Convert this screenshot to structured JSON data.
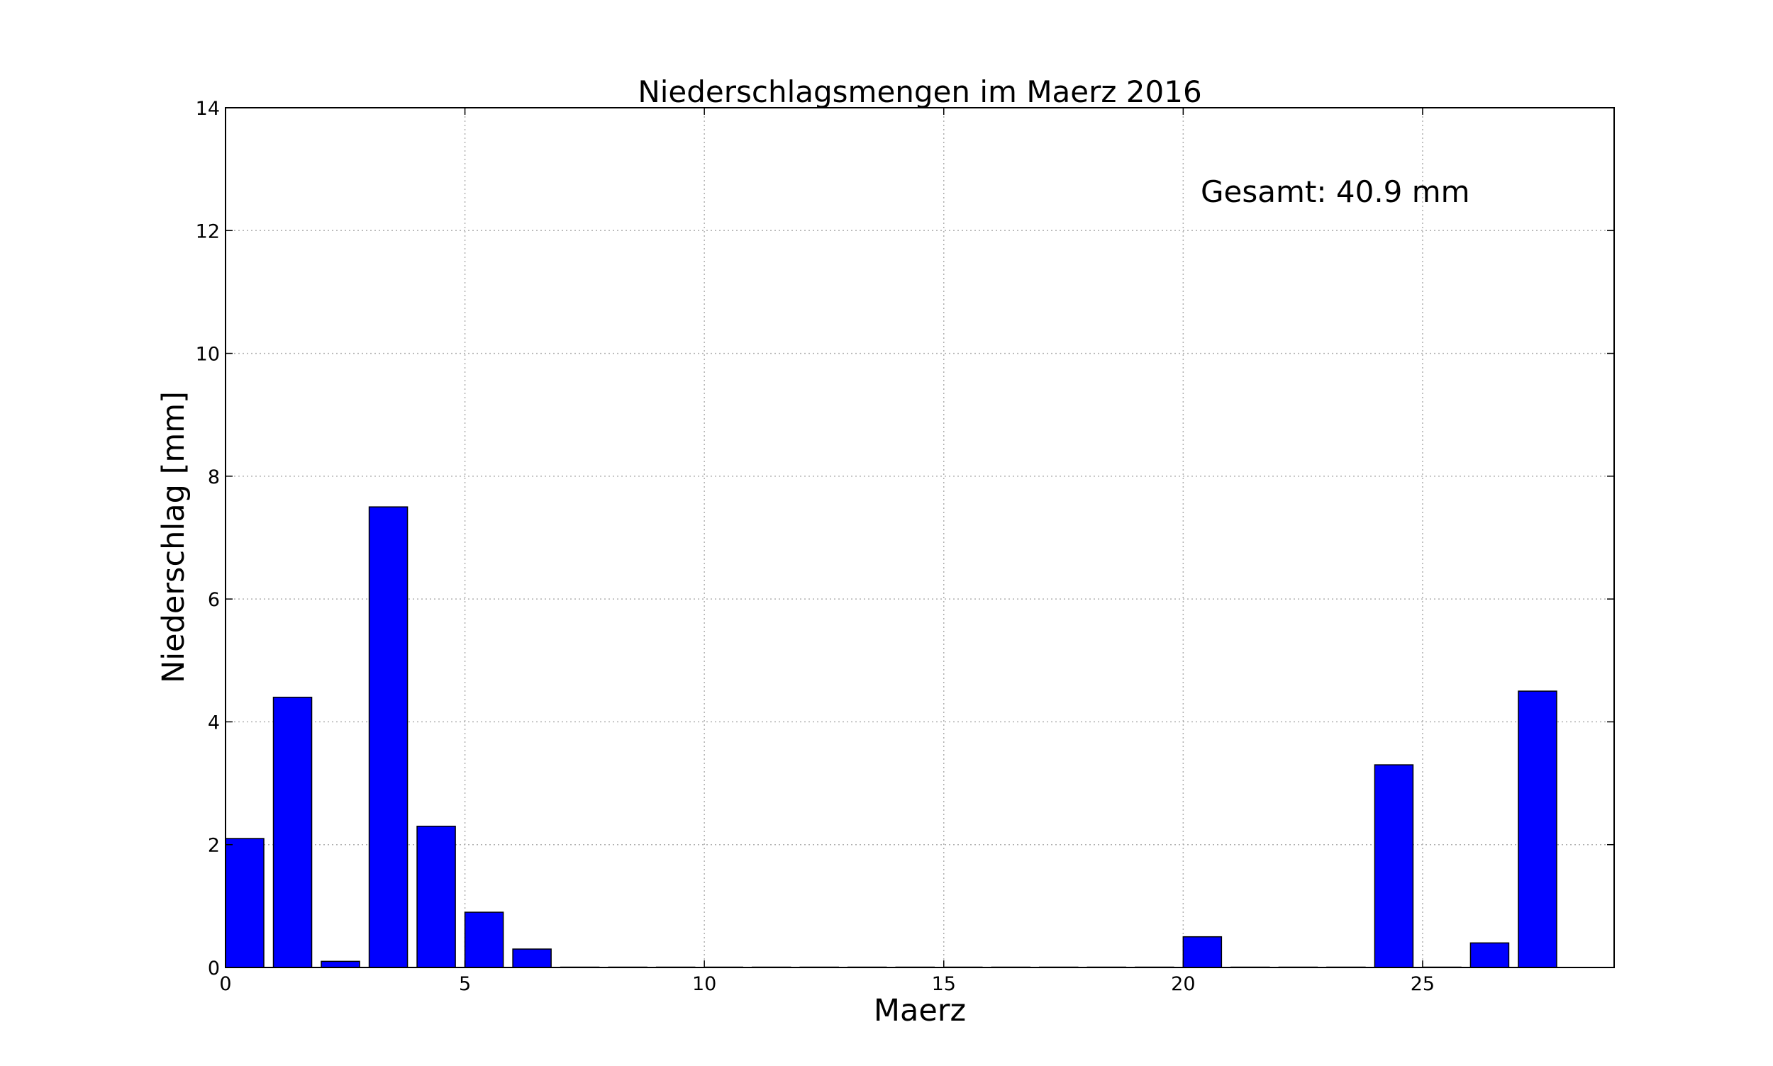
{
  "chart_data": {
    "type": "bar",
    "title": "Niederschlagsmengen im Maerz 2016",
    "xlabel": "Maerz",
    "ylabel": "Niederschlag [mm]",
    "annotation": "Gesamt: 40.9 mm",
    "xlim": [
      0,
      29
    ],
    "ylim": [
      0,
      14
    ],
    "xticks": [
      0,
      5,
      10,
      15,
      20,
      25
    ],
    "yticks": [
      0,
      2,
      4,
      6,
      8,
      10,
      12,
      14
    ],
    "grid": true,
    "bar_width": 0.8,
    "bar_color": "#0000ff",
    "x": [
      0,
      1,
      2,
      3,
      4,
      5,
      6,
      7,
      8,
      9,
      10,
      11,
      12,
      13,
      14,
      15,
      16,
      17,
      18,
      19,
      20,
      21,
      22,
      23,
      24,
      25,
      26,
      27
    ],
    "values": [
      2.1,
      4.4,
      0.1,
      7.5,
      2.3,
      0.9,
      0.3,
      0,
      0,
      0,
      0,
      0,
      0,
      0,
      0,
      0,
      0,
      0,
      0,
      0,
      0.5,
      0,
      0,
      0,
      3.3,
      0,
      0.4,
      4.5
    ]
  }
}
